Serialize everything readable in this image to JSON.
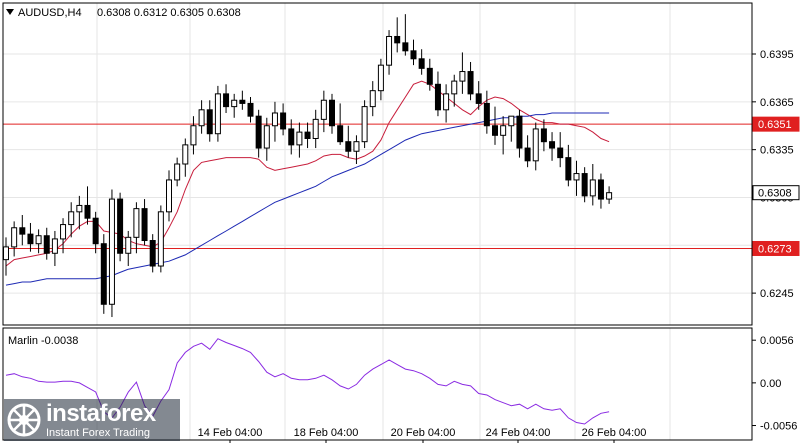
{
  "header": {
    "symbol_timeframe": "AUDUSD,H4",
    "ohlc": "0.6308 0.6312 0.6305 0.6308"
  },
  "indicator": {
    "label": "Marlin -0.0038"
  },
  "watermark": {
    "brand": "instaforex",
    "tagline": "Instant Forex Trading"
  },
  "colors": {
    "background": "#ffffff",
    "frame": "#000000",
    "grid": "#e6e6e6",
    "level_line": "#e02020",
    "ma_fast": "#c81e3c",
    "ma_slow": "#1e2ab4",
    "oscillator": "#8a2be2",
    "candle": "#000000"
  },
  "chart_data": [
    {
      "type": "candlestick",
      "title": "AUDUSD,H4",
      "ylim": [
        0.6225,
        0.6427
      ],
      "y_ticks": [
        "0.6395",
        "0.6365",
        "0.6335",
        "0.6305",
        "0.6275",
        "0.6245"
      ],
      "x_ticks": [
        "14 Feb 04:00",
        "18 Feb 04:00",
        "20 Feb 04:00",
        "24 Feb 04:00",
        "26 Feb 04:00"
      ],
      "price_labels": [
        {
          "text": "0.6351",
          "kind": "level"
        },
        {
          "text": "0.6308",
          "kind": "current"
        },
        {
          "text": "0.6273",
          "kind": "level"
        }
      ],
      "horizontal_levels": [
        0.6351,
        0.6273
      ],
      "candles": [
        [
          0.6266,
          0.628,
          0.6256,
          0.6274
        ],
        [
          0.6274,
          0.629,
          0.6268,
          0.6286
        ],
        [
          0.6286,
          0.6294,
          0.6275,
          0.6282
        ],
        [
          0.6282,
          0.6289,
          0.6271,
          0.6276
        ],
        [
          0.6276,
          0.6285,
          0.627,
          0.6281
        ],
        [
          0.6281,
          0.6286,
          0.6266,
          0.627
        ],
        [
          0.627,
          0.6284,
          0.6262,
          0.6279
        ],
        [
          0.6279,
          0.6292,
          0.627,
          0.6288
        ],
        [
          0.6288,
          0.6302,
          0.628,
          0.6296
        ],
        [
          0.6296,
          0.6306,
          0.6285,
          0.63
        ],
        [
          0.63,
          0.6312,
          0.6288,
          0.6292
        ],
        [
          0.6292,
          0.6296,
          0.627,
          0.6276
        ],
        [
          0.6276,
          0.6282,
          0.6232,
          0.6238
        ],
        [
          0.6238,
          0.631,
          0.623,
          0.6304
        ],
        [
          0.6304,
          0.6308,
          0.6265,
          0.627
        ],
        [
          0.627,
          0.6284,
          0.6262,
          0.628
        ],
        [
          0.628,
          0.6302,
          0.627,
          0.6298
        ],
        [
          0.6298,
          0.6304,
          0.6275,
          0.6278
        ],
        [
          0.6278,
          0.6282,
          0.6258,
          0.6262
        ],
        [
          0.6262,
          0.63,
          0.6258,
          0.6296
        ],
        [
          0.6296,
          0.6322,
          0.629,
          0.6316
        ],
        [
          0.6316,
          0.633,
          0.6312,
          0.6326
        ],
        [
          0.6326,
          0.6342,
          0.6318,
          0.6338
        ],
        [
          0.6338,
          0.6356,
          0.6332,
          0.635
        ],
        [
          0.635,
          0.6366,
          0.6345,
          0.636
        ],
        [
          0.636,
          0.6366,
          0.634,
          0.6345
        ],
        [
          0.6345,
          0.6375,
          0.634,
          0.637
        ],
        [
          0.637,
          0.6376,
          0.6358,
          0.6362
        ],
        [
          0.6362,
          0.637,
          0.6355,
          0.6366
        ],
        [
          0.6366,
          0.6372,
          0.636,
          0.6364
        ],
        [
          0.6364,
          0.6368,
          0.6352,
          0.6356
        ],
        [
          0.6356,
          0.636,
          0.633,
          0.6336
        ],
        [
          0.6336,
          0.6355,
          0.6328,
          0.635
        ],
        [
          0.635,
          0.6365,
          0.634,
          0.6358
        ],
        [
          0.6358,
          0.6364,
          0.6344,
          0.6348
        ],
        [
          0.6348,
          0.6354,
          0.6332,
          0.6338
        ],
        [
          0.6338,
          0.6352,
          0.633,
          0.6346
        ],
        [
          0.6346,
          0.6352,
          0.6336,
          0.6342
        ],
        [
          0.6342,
          0.636,
          0.6336,
          0.6354
        ],
        [
          0.6354,
          0.6372,
          0.6346,
          0.6366
        ],
        [
          0.6366,
          0.637,
          0.6345,
          0.635
        ],
        [
          0.635,
          0.6364,
          0.6338,
          0.634
        ],
        [
          0.634,
          0.635,
          0.633,
          0.6334
        ],
        [
          0.6334,
          0.6344,
          0.6326,
          0.634
        ],
        [
          0.634,
          0.6366,
          0.6336,
          0.6362
        ],
        [
          0.6362,
          0.6378,
          0.6356,
          0.6372
        ],
        [
          0.6372,
          0.6392,
          0.6366,
          0.6388
        ],
        [
          0.6388,
          0.641,
          0.6382,
          0.6406
        ],
        [
          0.6406,
          0.6418,
          0.6396,
          0.6402
        ],
        [
          0.6402,
          0.642,
          0.6394,
          0.6397
        ],
        [
          0.6397,
          0.6404,
          0.6388,
          0.6392
        ],
        [
          0.6392,
          0.6398,
          0.6382,
          0.6386
        ],
        [
          0.6386,
          0.6392,
          0.6372,
          0.6376
        ],
        [
          0.6376,
          0.6384,
          0.6356,
          0.636
        ],
        [
          0.636,
          0.6376,
          0.6352,
          0.637
        ],
        [
          0.637,
          0.6382,
          0.6362,
          0.6378
        ],
        [
          0.6378,
          0.6396,
          0.637,
          0.6384
        ],
        [
          0.6384,
          0.639,
          0.6366,
          0.637
        ],
        [
          0.637,
          0.6378,
          0.636,
          0.6364
        ],
        [
          0.6364,
          0.6372,
          0.6345,
          0.635
        ],
        [
          0.635,
          0.6362,
          0.6338,
          0.6344
        ],
        [
          0.6344,
          0.6356,
          0.6332,
          0.635
        ],
        [
          0.635,
          0.6356,
          0.634,
          0.6356
        ],
        [
          0.6356,
          0.636,
          0.633,
          0.6336
        ],
        [
          0.6336,
          0.6344,
          0.6324,
          0.6328
        ],
        [
          0.6328,
          0.6352,
          0.6322,
          0.6348
        ],
        [
          0.6348,
          0.6354,
          0.6334,
          0.634
        ],
        [
          0.634,
          0.6346,
          0.6328,
          0.6336
        ],
        [
          0.6336,
          0.6346,
          0.6324,
          0.633
        ],
        [
          0.633,
          0.6338,
          0.6312,
          0.6316
        ],
        [
          0.6316,
          0.6328,
          0.6306,
          0.632
        ],
        [
          0.632,
          0.6324,
          0.6302,
          0.6306
        ],
        [
          0.6306,
          0.6326,
          0.63,
          0.6316
        ],
        [
          0.6316,
          0.632,
          0.6298,
          0.6304
        ],
        [
          0.6304,
          0.6312,
          0.6301,
          0.6308
        ]
      ],
      "series": [
        {
          "name": "",
          "color": "#c81e3c",
          "values": [
            0.6262,
            0.6266,
            0.6267,
            0.6268,
            0.6269,
            0.627,
            0.6272,
            0.6276,
            0.6282,
            0.6287,
            0.629,
            0.629,
            0.6284,
            0.6283,
            0.6282,
            0.6278,
            0.6276,
            0.6275,
            0.6274,
            0.6277,
            0.6286,
            0.6296,
            0.631,
            0.6322,
            0.6327,
            0.6328,
            0.6329,
            0.633,
            0.633,
            0.633,
            0.633,
            0.6329,
            0.6324,
            0.6322,
            0.6323,
            0.6324,
            0.6325,
            0.6326,
            0.6328,
            0.6331,
            0.6332,
            0.6332,
            0.633,
            0.6329,
            0.6331,
            0.6334,
            0.6341,
            0.6352,
            0.636,
            0.6368,
            0.6376,
            0.6378,
            0.6376,
            0.6372,
            0.6368,
            0.6364,
            0.636,
            0.6357,
            0.6362,
            0.6366,
            0.6368,
            0.6367,
            0.6364,
            0.636,
            0.6357,
            0.6354,
            0.6352,
            0.6352,
            0.6351,
            0.6351,
            0.635,
            0.6349,
            0.6346,
            0.6342,
            0.634
          ]
        },
        {
          "name": "",
          "color": "#1e2ab4",
          "values": [
            0.625,
            0.6251,
            0.6252,
            0.6252,
            0.6253,
            0.6254,
            0.6254,
            0.6254,
            0.6254,
            0.6254,
            0.6254,
            0.6254,
            0.6255,
            0.6256,
            0.6258,
            0.626,
            0.6261,
            0.6262,
            0.6263,
            0.6264,
            0.6265,
            0.6267,
            0.6269,
            0.6272,
            0.6275,
            0.6278,
            0.6281,
            0.6284,
            0.6287,
            0.629,
            0.6293,
            0.6296,
            0.6299,
            0.6302,
            0.6304,
            0.6306,
            0.6308,
            0.631,
            0.6312,
            0.6315,
            0.6318,
            0.632,
            0.6322,
            0.6324,
            0.6326,
            0.6329,
            0.6332,
            0.6335,
            0.6338,
            0.6341,
            0.6343,
            0.6345,
            0.6346,
            0.6347,
            0.6348,
            0.6349,
            0.635,
            0.6351,
            0.6352,
            0.6353,
            0.6354,
            0.6355,
            0.6355,
            0.6356,
            0.6356,
            0.6357,
            0.6357,
            0.6358,
            0.6358,
            0.6358,
            0.6358,
            0.6358,
            0.6358,
            0.6358,
            0.6358
          ]
        }
      ]
    },
    {
      "type": "line",
      "title": "Marlin -0.0038",
      "ylim": [
        -0.0075,
        0.0072
      ],
      "y_ticks": [
        "0.0056",
        "0.00",
        "-0.0056"
      ],
      "series": [
        {
          "name": "Marlin",
          "color": "#8a2be2",
          "values": [
            0.001,
            0.0012,
            0.0008,
            0.0006,
            0.0002,
            0.0001,
            0.0001,
            0.0002,
            0.0002,
            0.0,
            -0.0006,
            -0.0012,
            -0.0038,
            -0.0046,
            -0.0032,
            -0.0012,
            0.0001,
            -0.003,
            -0.0044,
            -0.0024,
            -0.0009,
            0.0026,
            0.004,
            0.0048,
            0.0052,
            0.0044,
            0.0058,
            0.0053,
            0.0049,
            0.0045,
            0.004,
            0.0028,
            0.0014,
            0.0008,
            0.0012,
            0.0006,
            0.0004,
            0.0004,
            0.0006,
            0.001,
            0.0004,
            -0.0004,
            -0.0008,
            -0.0002,
            0.001,
            0.0018,
            0.0024,
            0.003,
            0.0024,
            0.0018,
            0.0016,
            0.0012,
            0.0006,
            -0.0002,
            -0.0004,
            0.0002,
            -0.0002,
            -0.0004,
            -0.0014,
            -0.0016,
            -0.0022,
            -0.0026,
            -0.003,
            -0.0028,
            -0.0034,
            -0.0028,
            -0.0034,
            -0.0036,
            -0.0034,
            -0.0046,
            -0.0052,
            -0.0054,
            -0.0046,
            -0.004,
            -0.0038
          ]
        }
      ]
    }
  ]
}
